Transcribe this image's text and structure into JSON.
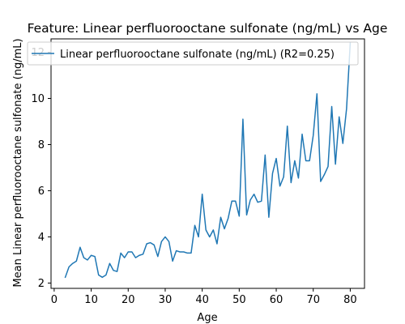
{
  "chart_data": {
    "type": "line",
    "title": "Feature: Linear perfluorooctane sulfonate (ng/mL) vs Age",
    "xlabel": "Age",
    "ylabel": "Mean Linear perfluorooctane sulfonate (ng/mL)",
    "xlim": [
      -0.85,
      83.85
    ],
    "ylim": [
      1.77,
      12.58
    ],
    "x_ticks": [
      0,
      10,
      20,
      30,
      40,
      50,
      60,
      70,
      80
    ],
    "y_ticks": [
      2,
      4,
      6,
      8,
      10,
      12
    ],
    "grid": false,
    "legend": {
      "location": "top-left",
      "entries": [
        "Linear perfluorooctane sulfonate (ng/mL) (R2=0.25)"
      ]
    },
    "series": [
      {
        "name": "Linear perfluorooctane sulfonate (ng/mL) (R2=0.25)",
        "color": "#1f77b4",
        "x": [
          3,
          4,
          5,
          6,
          7,
          8,
          9,
          10,
          11,
          12,
          13,
          14,
          15,
          16,
          17,
          18,
          19,
          20,
          21,
          22,
          23,
          24,
          25,
          26,
          27,
          28,
          29,
          30,
          31,
          32,
          33,
          34,
          35,
          36,
          37,
          38,
          39,
          40,
          41,
          42,
          43,
          44,
          45,
          46,
          47,
          48,
          49,
          50,
          51,
          52,
          53,
          54,
          55,
          56,
          57,
          58,
          59,
          60,
          61,
          62,
          63,
          64,
          65,
          66,
          67,
          68,
          69,
          70,
          71,
          72,
          73,
          74,
          75,
          76,
          77,
          78,
          79,
          80
        ],
        "y": [
          2.25,
          2.7,
          2.85,
          2.95,
          3.55,
          3.1,
          3.0,
          3.2,
          3.15,
          2.35,
          2.25,
          2.35,
          2.85,
          2.55,
          2.5,
          3.3,
          3.1,
          3.35,
          3.35,
          3.1,
          3.2,
          3.25,
          3.7,
          3.75,
          3.65,
          3.15,
          3.8,
          4.0,
          3.8,
          2.95,
          3.4,
          3.35,
          3.35,
          3.3,
          3.3,
          4.5,
          4.0,
          5.85,
          4.3,
          4.0,
          4.3,
          3.7,
          4.85,
          4.35,
          4.8,
          5.55,
          5.55,
          4.9,
          9.1,
          4.95,
          5.6,
          5.85,
          5.5,
          5.55,
          7.55,
          4.85,
          6.75,
          7.4,
          6.2,
          6.6,
          8.8,
          6.35,
          7.3,
          6.55,
          8.45,
          7.3,
          7.3,
          8.4,
          10.2,
          6.4,
          6.7,
          7.05,
          9.65,
          7.15,
          9.2,
          8.05,
          9.55,
          12.4
        ]
      }
    ]
  }
}
